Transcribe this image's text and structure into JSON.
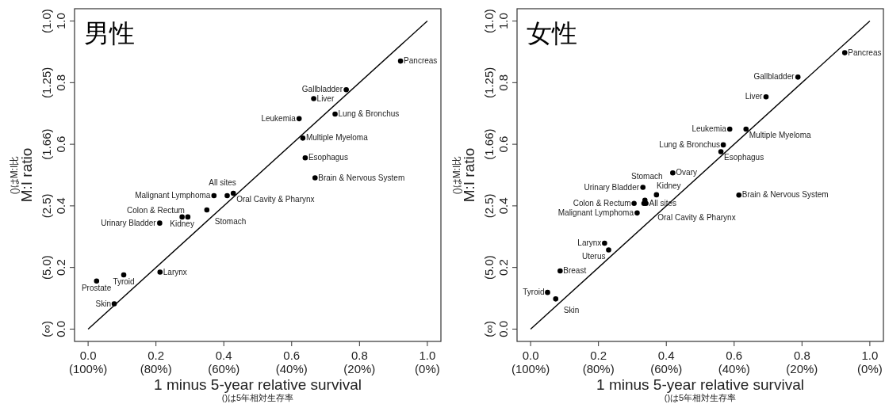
{
  "chart_data": [
    {
      "type": "scatter",
      "title": "男性",
      "xlabel": "1 minus 5-year relative survival",
      "ylabel": "M:I ratio",
      "xlim": [
        -0.04,
        1.04
      ],
      "ylim": [
        -0.04,
        1.04
      ],
      "xticks": [
        {
          "value": 0,
          "label": "0.0"
        },
        {
          "value": 0.2,
          "label": "0.2"
        },
        {
          "value": 0.4,
          "label": "0.4"
        },
        {
          "value": 0.6,
          "label": "0.6"
        },
        {
          "value": 0.8,
          "label": "0.8"
        },
        {
          "value": 1,
          "label": "1.0"
        }
      ],
      "yticks": [
        {
          "value": 0,
          "label": "0.0"
        },
        {
          "value": 0.2,
          "label": "0.2"
        },
        {
          "value": 0.4,
          "label": "0.4"
        },
        {
          "value": 0.6,
          "label": "0.6"
        },
        {
          "value": 0.8,
          "label": "0.8"
        },
        {
          "value": 1,
          "label": "1.0"
        }
      ],
      "grid": false,
      "series": [
        {
          "marker": "circle",
          "color": "#000000",
          "x": [
            0.921,
            0.761,
            0.665,
            0.728,
            0.622,
            0.633,
            0.64,
            0.669,
            0.371,
            0.41,
            0.428,
            0.277,
            0.294,
            0.35,
            0.211,
            0.105,
            0.212,
            0.025,
            0.077
          ],
          "values": [
            0.87,
            0.777,
            0.748,
            0.698,
            0.683,
            0.62,
            0.556,
            0.491,
            0.433,
            0.433,
            0.441,
            0.364,
            0.364,
            0.387,
            0.344,
            0.176,
            0.185,
            0.156,
            0.082
          ]
        },
        {
          "type": "line",
          "color": "#000000",
          "x": [
            0,
            1
          ],
          "values": [
            0,
            1
          ],
          "line_style": "solid"
        }
      ],
      "annotations": [
        "()はM:I比",
        "()は5年相対生存率",
        "(100%)",
        "(80%)",
        "(60%)",
        "(40%)",
        "(20%)",
        "(0%)",
        "(∞)",
        "(5.0)",
        "(2.5)",
        "(1.66)",
        "(1.25)",
        "(1.0)",
        {
          "text": "Pancreas",
          "x": 0.921,
          "y": 0.87
        },
        {
          "text": "Gallbladder",
          "x": 0.761,
          "y": 0.777
        },
        {
          "text": "Liver",
          "x": 0.665,
          "y": 0.748
        },
        {
          "text": "Lung & Bronchus",
          "x": 0.728,
          "y": 0.698
        },
        {
          "text": "Leukemia",
          "x": 0.622,
          "y": 0.683
        },
        {
          "text": "Multiple Myeloma",
          "x": 0.633,
          "y": 0.62
        },
        {
          "text": "Esophagus",
          "x": 0.64,
          "y": 0.556
        },
        {
          "text": "Brain & Nervous System",
          "x": 0.669,
          "y": 0.491
        },
        {
          "text": "Malignant Lymphoma",
          "x": 0.371,
          "y": 0.433
        },
        {
          "text": "All sites",
          "x": 0.41,
          "y": 0.433
        },
        {
          "text": "Oral Cavity & Pharynx",
          "x": 0.428,
          "y": 0.441
        },
        {
          "text": "Kidney",
          "x": 0.277,
          "y": 0.364
        },
        {
          "text": "Colon & Rectum",
          "x": 0.294,
          "y": 0.364
        },
        {
          "text": "Stomach",
          "x": 0.35,
          "y": 0.387
        },
        {
          "text": "Urinary Bladder",
          "x": 0.211,
          "y": 0.344
        },
        {
          "text": "Tyroid",
          "x": 0.105,
          "y": 0.176
        },
        {
          "text": "Larynx",
          "x": 0.212,
          "y": 0.185
        },
        {
          "text": "Prostate",
          "x": 0.025,
          "y": 0.156
        },
        {
          "text": "Skin",
          "x": 0.077,
          "y": 0.082
        }
      ]
    },
    {
      "type": "scatter",
      "title": "女性",
      "xlabel": "1 minus 5-year relative survival",
      "ylabel": "M:I ratio",
      "xlim": [
        -0.04,
        1.04
      ],
      "ylim": [
        -0.04,
        1.04
      ],
      "xticks": [
        {
          "value": 0,
          "label": "0.0"
        },
        {
          "value": 0.2,
          "label": "0.2"
        },
        {
          "value": 0.4,
          "label": "0.4"
        },
        {
          "value": 0.6,
          "label": "0.6"
        },
        {
          "value": 0.8,
          "label": "0.8"
        },
        {
          "value": 1,
          "label": "1.0"
        }
      ],
      "yticks": [
        {
          "value": 0,
          "label": "0.0"
        },
        {
          "value": 0.2,
          "label": "0.2"
        },
        {
          "value": 0.4,
          "label": "0.4"
        },
        {
          "value": 0.6,
          "label": "0.6"
        },
        {
          "value": 0.8,
          "label": "0.8"
        },
        {
          "value": 1,
          "label": "1.0"
        }
      ],
      "grid": false,
      "series": [
        {
          "marker": "circle",
          "color": "#000000",
          "x": [
            0.926,
            0.788,
            0.694,
            0.587,
            0.635,
            0.568,
            0.561,
            0.419,
            0.331,
            0.371,
            0.614,
            0.305,
            0.337,
            0.334,
            0.34,
            0.314,
            0.218,
            0.23,
            0.087,
            0.05,
            0.074
          ],
          "values": [
            0.897,
            0.818,
            0.754,
            0.649,
            0.649,
            0.598,
            0.576,
            0.507,
            0.46,
            0.436,
            0.435,
            0.408,
            0.418,
            0.408,
            0.408,
            0.377,
            0.279,
            0.257,
            0.189,
            0.119,
            0.098
          ]
        },
        {
          "type": "line",
          "color": "#000000",
          "x": [
            0,
            1
          ],
          "values": [
            0,
            1
          ],
          "line_style": "solid"
        }
      ],
      "annotations": [
        "()はM:I比",
        "()は5年相対生存率",
        "(100%)",
        "(80%)",
        "(60%)",
        "(40%)",
        "(20%)",
        "(0%)",
        "(∞)",
        "(5.0)",
        "(2.5)",
        "(1.66)",
        "(1.25)",
        "(1.0)",
        {
          "text": "Pancreas",
          "x": 0.926,
          "y": 0.897
        },
        {
          "text": "Gallbladder",
          "x": 0.788,
          "y": 0.818
        },
        {
          "text": "Liver",
          "x": 0.694,
          "y": 0.754
        },
        {
          "text": "Leukemia",
          "x": 0.587,
          "y": 0.649
        },
        {
          "text": "Multiple Myeloma",
          "x": 0.635,
          "y": 0.649
        },
        {
          "text": "Lung & Bronchus",
          "x": 0.568,
          "y": 0.598
        },
        {
          "text": "Esophagus",
          "x": 0.561,
          "y": 0.576
        },
        {
          "text": "Ovary",
          "x": 0.419,
          "y": 0.507
        },
        {
          "text": "Urinary Bladder",
          "x": 0.331,
          "y": 0.46
        },
        {
          "text": "Stomach",
          "x": 0.371,
          "y": 0.436
        },
        {
          "text": "Brain & Nervous System",
          "x": 0.614,
          "y": 0.435
        },
        {
          "text": "Colon & Rectum",
          "x": 0.305,
          "y": 0.408
        },
        {
          "text": "Oral Cavity & Pharynx",
          "x": 0.337,
          "y": 0.418
        },
        {
          "text": "Kidney",
          "x": 0.334,
          "y": 0.408
        },
        {
          "text": "All sites",
          "x": 0.34,
          "y": 0.408
        },
        {
          "text": "Malignant Lymphoma",
          "x": 0.314,
          "y": 0.377
        },
        {
          "text": "Larynx",
          "x": 0.218,
          "y": 0.279
        },
        {
          "text": "Uterus",
          "x": 0.23,
          "y": 0.257
        },
        {
          "text": "Breast",
          "x": 0.087,
          "y": 0.189
        },
        {
          "text": "Tyroid",
          "x": 0.05,
          "y": 0.119
        },
        {
          "text": "Skin",
          "x": 0.074,
          "y": 0.098
        }
      ]
    }
  ]
}
